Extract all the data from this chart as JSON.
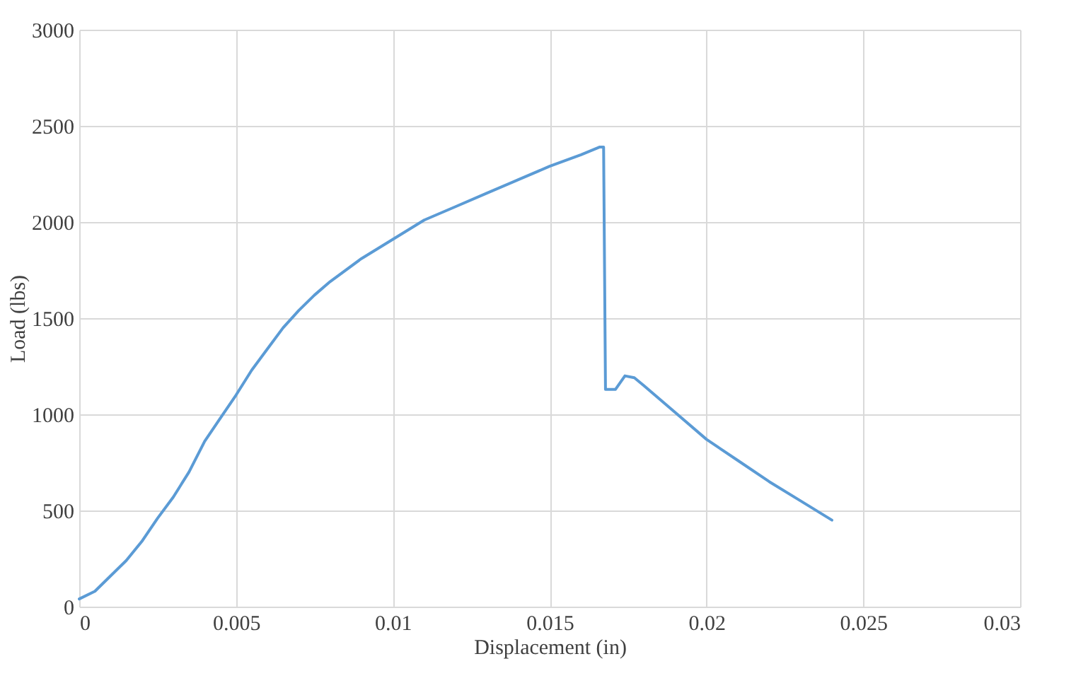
{
  "chart_data": {
    "type": "line",
    "xlabel": "Displacement (in)",
    "ylabel": "Load (lbs)",
    "xlim": [
      0,
      0.03
    ],
    "xticks": [
      0,
      0.005,
      0.01,
      0.015,
      0.02,
      0.025,
      0.03
    ],
    "ylim": [
      0,
      3000
    ],
    "yticks": [
      0,
      500,
      1000,
      1500,
      2000,
      2500,
      3000
    ],
    "grid": true,
    "marker": "none",
    "line_style": "solid",
    "series": [
      {
        "color": "#5b9bd5",
        "x": [
          0,
          0.0005,
          0.001,
          0.0015,
          0.002,
          0.0025,
          0.003,
          0.0035,
          0.004,
          0.0045,
          0.005,
          0.0055,
          0.006,
          0.0065,
          0.007,
          0.0075,
          0.008,
          0.009,
          0.01,
          0.011,
          0.012,
          0.013,
          0.014,
          0.015,
          0.016,
          0.0166,
          0.01672,
          0.01678,
          0.0171,
          0.0174,
          0.0177,
          0.018,
          0.019,
          0.02,
          0.021,
          0.022,
          0.023,
          0.024
        ],
        "values": [
          40,
          80,
          160,
          240,
          340,
          460,
          570,
          700,
          860,
          980,
          1100,
          1230,
          1340,
          1450,
          1540,
          1620,
          1690,
          1810,
          1910,
          2010,
          2080,
          2150,
          2220,
          2290,
          2350,
          2390,
          2390,
          1130,
          1130,
          1200,
          1190,
          1150,
          1010,
          870,
          760,
          650,
          550,
          450
        ]
      }
    ]
  }
}
